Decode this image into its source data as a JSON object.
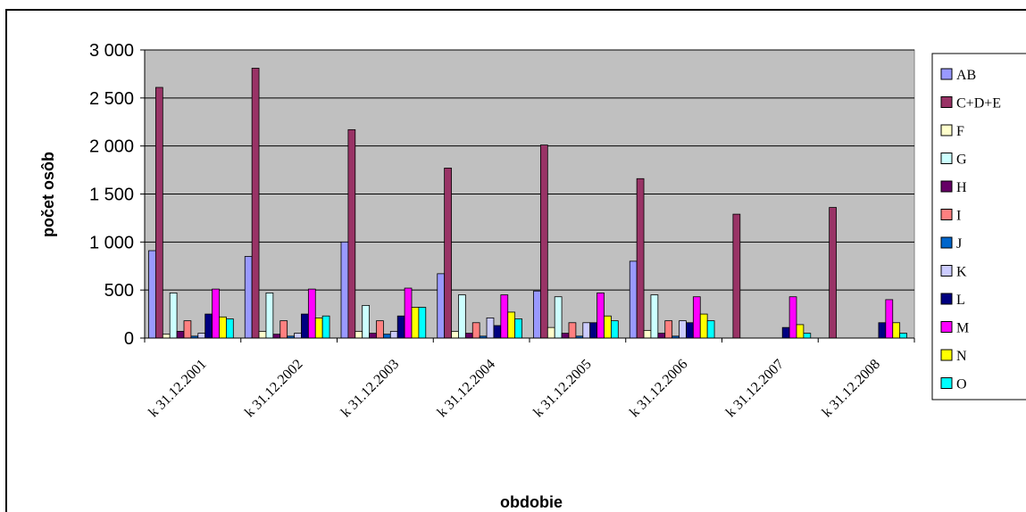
{
  "chart_data": {
    "type": "bar",
    "title": "",
    "xlabel": "obdobie",
    "ylabel": "počet osôb",
    "ylim": [
      0,
      3000
    ],
    "yticks": [
      0,
      500,
      1000,
      1500,
      2000,
      2500,
      3000
    ],
    "ytick_labels": [
      "0",
      "500",
      "1 000",
      "1 500",
      "2 000",
      "2 500",
      "3 000"
    ],
    "grid": true,
    "legend_position": "right",
    "plot_background": "#c0c0c0",
    "categories": [
      "k 31.12.2001",
      "k 31.12.2002",
      "k 31.12.2003",
      "k 31.12.2004",
      "k 31.12.2005",
      "k 31.12.2006",
      "k 31.12.2007",
      "k 31.12.2008"
    ],
    "series": [
      {
        "name": "AB",
        "color": "#9999ff",
        "values": [
          910,
          850,
          1000,
          670,
          490,
          800,
          0,
          0
        ]
      },
      {
        "name": "C+D+E",
        "color": "#993366",
        "values": [
          2610,
          2810,
          2170,
          1770,
          2010,
          1660,
          1290,
          1360
        ]
      },
      {
        "name": "F",
        "color": "#ffffcc",
        "values": [
          40,
          70,
          70,
          70,
          110,
          80,
          0,
          0
        ]
      },
      {
        "name": "G",
        "color": "#ccffff",
        "values": [
          470,
          470,
          340,
          450,
          430,
          450,
          0,
          0
        ]
      },
      {
        "name": "H",
        "color": "#660066",
        "values": [
          70,
          40,
          50,
          50,
          50,
          50,
          0,
          0
        ]
      },
      {
        "name": "I",
        "color": "#ff8080",
        "values": [
          180,
          180,
          180,
          160,
          160,
          180,
          0,
          0
        ]
      },
      {
        "name": "J",
        "color": "#0066cc",
        "values": [
          20,
          20,
          40,
          20,
          20,
          20,
          0,
          0
        ]
      },
      {
        "name": "K",
        "color": "#ccccff",
        "values": [
          50,
          50,
          70,
          210,
          160,
          180,
          0,
          0
        ]
      },
      {
        "name": "L",
        "color": "#000080",
        "values": [
          250,
          250,
          230,
          130,
          160,
          160,
          110,
          160
        ]
      },
      {
        "name": "M",
        "color": "#ff00ff",
        "values": [
          510,
          510,
          520,
          450,
          470,
          430,
          430,
          400
        ]
      },
      {
        "name": "N",
        "color": "#ffff00",
        "values": [
          220,
          210,
          320,
          270,
          230,
          250,
          140,
          160
        ]
      },
      {
        "name": "O",
        "color": "#00ffff",
        "values": [
          200,
          230,
          320,
          200,
          180,
          180,
          50,
          50
        ]
      }
    ]
  }
}
